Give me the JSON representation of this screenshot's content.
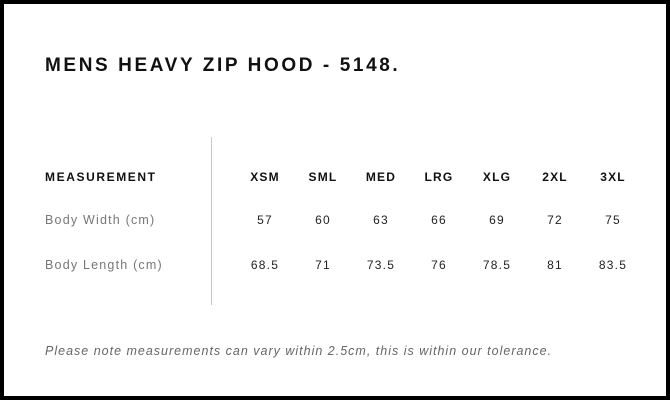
{
  "title": "MENS HEAVY ZIP HOOD - 5148.",
  "table": {
    "header_label": "MEASUREMENT",
    "sizes": [
      "XSM",
      "SML",
      "MED",
      "LRG",
      "XLG",
      "2XL",
      "3XL"
    ],
    "rows": [
      {
        "label": "Body Width (cm)",
        "values": [
          "57",
          "60",
          "63",
          "66",
          "69",
          "72",
          "75"
        ]
      },
      {
        "label": "Body Length (cm)",
        "values": [
          "68.5",
          "71",
          "73.5",
          "76",
          "78.5",
          "81",
          "83.5"
        ]
      }
    ]
  },
  "note": "Please note measurements can vary within 2.5cm, this is within our tolerance."
}
